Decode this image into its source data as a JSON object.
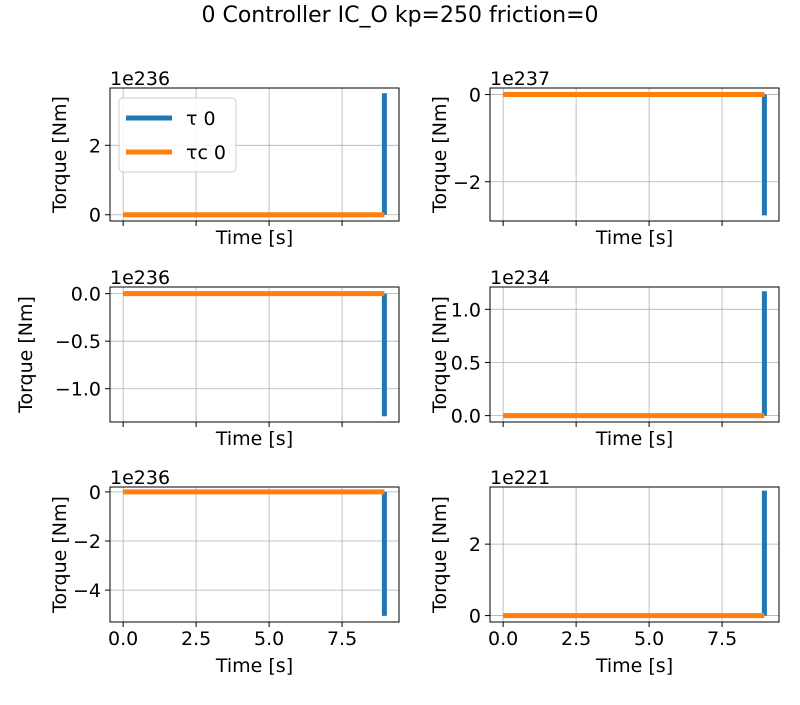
{
  "figure": {
    "title": "0 Controller IC_O kp=250 friction=0"
  },
  "colors": {
    "tau": "#1f77b4",
    "tau_c": "#ff7f0e"
  },
  "legend": {
    "location": "upper left",
    "entries": [
      {
        "label": "τ 0",
        "color": "#1f77b4"
      },
      {
        "label": "τc 0",
        "color": "#ff7f0e"
      }
    ]
  },
  "chart_data": [
    {
      "type": "line",
      "xlabel": "Time [s]",
      "ylabel": "Torque [Nm]",
      "offset": "1e236",
      "grid": true,
      "xlim": [
        -0.45,
        9.45
      ],
      "ylim": [
        -0.18,
        3.65
      ],
      "xticks": [
        0,
        2.5,
        5,
        7.5
      ],
      "xticklabels": [],
      "yticks": [
        0,
        2
      ],
      "yticklabels": [
        "0",
        "2"
      ],
      "series": [
        {
          "name": "τ 0",
          "x": [
            8.95,
            8.95
          ],
          "y": [
            0,
            3.5
          ]
        },
        {
          "name": "τc 0",
          "x": [
            0,
            8.95
          ],
          "y": [
            0,
            0
          ]
        }
      ]
    },
    {
      "type": "line",
      "xlabel": "Time [s]",
      "ylabel": "Torque [Nm]",
      "offset": "1e237",
      "grid": true,
      "xlim": [
        -0.45,
        9.45
      ],
      "ylim": [
        -2.9,
        0.15
      ],
      "xticks": [
        0,
        2.5,
        5,
        7.5
      ],
      "xticklabels": [],
      "yticks": [
        0,
        -2
      ],
      "yticklabels": [
        "0",
        "−2"
      ],
      "series": [
        {
          "name": "τ 0",
          "x": [
            8.95,
            8.95
          ],
          "y": [
            0,
            -2.77
          ]
        },
        {
          "name": "τc 0",
          "x": [
            0,
            8.95
          ],
          "y": [
            0,
            0
          ]
        }
      ]
    },
    {
      "type": "line",
      "xlabel": "Time [s]",
      "ylabel": "Torque [Nm]",
      "offset": "1e236",
      "grid": true,
      "xlim": [
        -0.45,
        9.45
      ],
      "ylim": [
        -1.35,
        0.07
      ],
      "xticks": [
        0,
        2.5,
        5,
        7.5
      ],
      "xticklabels": [],
      "yticks": [
        0,
        -0.5,
        -1.0
      ],
      "yticklabels": [
        "0.0",
        "−0.5",
        "−1.0"
      ],
      "series": [
        {
          "name": "τ 0",
          "x": [
            8.95,
            8.95
          ],
          "y": [
            0,
            -1.29
          ]
        },
        {
          "name": "τc 0",
          "x": [
            0,
            8.95
          ],
          "y": [
            0,
            0
          ]
        }
      ]
    },
    {
      "type": "line",
      "xlabel": "Time [s]",
      "ylabel": "Torque [Nm]",
      "offset": "1e234",
      "grid": true,
      "xlim": [
        -0.45,
        9.45
      ],
      "ylim": [
        -0.06,
        1.21
      ],
      "xticks": [
        0,
        2.5,
        5,
        7.5
      ],
      "xticklabels": [],
      "yticks": [
        0,
        0.5,
        1.0
      ],
      "yticklabels": [
        "0.0",
        "0.5",
        "1.0"
      ],
      "series": [
        {
          "name": "τ 0",
          "x": [
            8.95,
            8.95
          ],
          "y": [
            0,
            1.17
          ]
        },
        {
          "name": "τc 0",
          "x": [
            0,
            8.95
          ],
          "y": [
            0,
            0
          ]
        }
      ]
    },
    {
      "type": "line",
      "xlabel": "Time [s]",
      "ylabel": "Torque [Nm]",
      "offset": "1e236",
      "grid": true,
      "xlim": [
        -0.45,
        9.45
      ],
      "ylim": [
        -5.3,
        0.2
      ],
      "xticks": [
        0,
        2.5,
        5,
        7.5
      ],
      "xticklabels": [
        "0.0",
        "2.5",
        "5.0",
        "7.5"
      ],
      "yticks": [
        0,
        -2,
        -4
      ],
      "yticklabels": [
        "0",
        "−2",
        "−4"
      ],
      "series": [
        {
          "name": "τ 0",
          "x": [
            8.95,
            8.95
          ],
          "y": [
            0,
            -5.05
          ]
        },
        {
          "name": "τc 0",
          "x": [
            0,
            8.95
          ],
          "y": [
            0,
            0
          ]
        }
      ]
    },
    {
      "type": "line",
      "xlabel": "Time [s]",
      "ylabel": "Torque [Nm]",
      "offset": "1e221",
      "grid": true,
      "xlim": [
        -0.45,
        9.45
      ],
      "ylim": [
        -0.18,
        3.6
      ],
      "xticks": [
        0,
        2.5,
        5,
        7.5
      ],
      "xticklabels": [
        "0.0",
        "2.5",
        "5.0",
        "7.5"
      ],
      "yticks": [
        0,
        2
      ],
      "yticklabels": [
        "0",
        "2"
      ],
      "series": [
        {
          "name": "τ 0",
          "x": [
            8.95,
            8.95
          ],
          "y": [
            0,
            3.5
          ]
        },
        {
          "name": "τc 0",
          "x": [
            0,
            8.95
          ],
          "y": [
            0,
            0
          ]
        }
      ]
    }
  ]
}
